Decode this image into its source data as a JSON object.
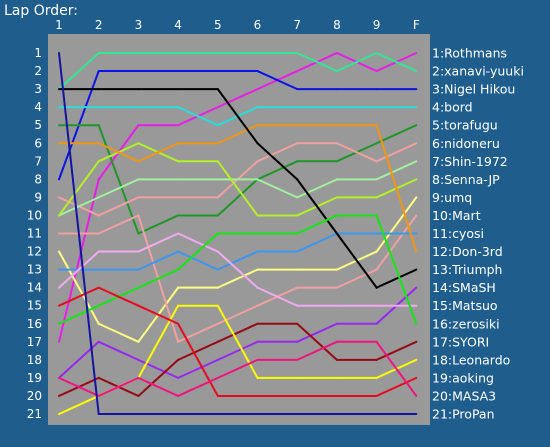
{
  "chart_data": {
    "type": "line",
    "title": "Lap Order:",
    "x": [
      "1",
      "2",
      "3",
      "4",
      "5",
      "6",
      "7",
      "8",
      "9",
      "F"
    ],
    "y_ticks": [
      "1",
      "2",
      "3",
      "4",
      "5",
      "6",
      "7",
      "8",
      "9",
      "10",
      "11",
      "12",
      "13",
      "14",
      "15",
      "16",
      "17",
      "18",
      "19",
      "20",
      "21"
    ],
    "ylim": [
      1,
      21
    ],
    "y_inverted": true,
    "grid": false,
    "legend": "right",
    "plot_bg": "#999999",
    "series": [
      {
        "name": "1:Rothmans",
        "color": "#e61ee6",
        "positions": [
          17,
          8,
          5,
          5,
          4,
          3,
          2,
          1,
          2,
          1
        ]
      },
      {
        "name": "2:xanavi-yuuki",
        "color": "#32e696",
        "positions": [
          3,
          1,
          1,
          1,
          1,
          1,
          1,
          2,
          1,
          2
        ]
      },
      {
        "name": "3:Nigel Hikou",
        "color": "#0a14e6",
        "positions": [
          8,
          2,
          2,
          2,
          2,
          2,
          3,
          3,
          3,
          3
        ]
      },
      {
        "name": "4:bord",
        "color": "#28dcdc",
        "positions": [
          4,
          4,
          4,
          4,
          5,
          4,
          4,
          4,
          4,
          4
        ]
      },
      {
        "name": "5:torafugu",
        "color": "#1e9628",
        "positions": [
          5,
          5,
          11,
          10,
          10,
          8,
          7,
          7,
          6,
          5
        ]
      },
      {
        "name": "6:nidoneru",
        "color": "#f0a0a0",
        "positions": [
          9,
          10,
          9,
          9,
          9,
          7,
          6,
          6,
          7,
          6
        ]
      },
      {
        "name": "7:Shin-1972",
        "color": "#a0f0a0",
        "positions": [
          10,
          9,
          8,
          8,
          8,
          8,
          9,
          8,
          8,
          7
        ]
      },
      {
        "name": "8:Senna-JP",
        "color": "#b4f028",
        "positions": [
          10,
          7,
          6,
          7,
          7,
          10,
          10,
          9,
          9,
          8
        ]
      },
      {
        "name": "9:umq",
        "color": "#ffff82",
        "positions": [
          12,
          16,
          17,
          14,
          14,
          13,
          13,
          13,
          12,
          9
        ]
      },
      {
        "name": "10:Mart",
        "color": "#f0a0a0",
        "positions": [
          11,
          11,
          10,
          17,
          16,
          15,
          14,
          14,
          13,
          10
        ]
      },
      {
        "name": "11:cyosi",
        "color": "#3c96f0",
        "positions": [
          13,
          13,
          13,
          12,
          13,
          12,
          12,
          11,
          11,
          11
        ]
      },
      {
        "name": "12:Don-3rd",
        "color": "#f09614",
        "positions": [
          6,
          6,
          7,
          6,
          6,
          5,
          5,
          5,
          5,
          12
        ]
      },
      {
        "name": "13:Triumph",
        "color": "#000000",
        "positions": [
          3,
          3,
          3,
          3,
          3,
          6,
          8,
          11,
          14,
          13
        ]
      },
      {
        "name": "14:SMaSH",
        "color": "#9628f0",
        "positions": [
          19,
          17,
          18,
          19,
          18,
          17,
          17,
          16,
          16,
          14
        ]
      },
      {
        "name": "15:Matsuo",
        "color": "#f0aaf0",
        "positions": [
          14,
          12,
          12,
          11,
          12,
          14,
          15,
          15,
          15,
          15
        ]
      },
      {
        "name": "16:zerosiki",
        "color": "#14e614",
        "positions": [
          16,
          15,
          14,
          13,
          11,
          11,
          11,
          10,
          10,
          16
        ]
      },
      {
        "name": "17:SYORI",
        "color": "#960a14",
        "positions": [
          20,
          19,
          20,
          18,
          17,
          16,
          16,
          18,
          18,
          17
        ]
      },
      {
        "name": "18:Leonardo",
        "color": "#ffff00",
        "positions": [
          21,
          20,
          19,
          15,
          15,
          19,
          19,
          19,
          19,
          18
        ]
      },
      {
        "name": "19:aoking",
        "color": "#e60a1e",
        "positions": [
          15,
          14,
          15,
          16,
          20,
          20,
          20,
          20,
          20,
          19
        ]
      },
      {
        "name": "20:MASA3",
        "color": "#f0147e",
        "positions": [
          19,
          20,
          19,
          20,
          19,
          18,
          18,
          17,
          17,
          20
        ]
      },
      {
        "name": "21:ProPan",
        "color": "#1414a0",
        "positions": [
          1,
          21,
          21,
          21,
          21,
          21,
          21,
          21,
          21,
          21
        ]
      }
    ]
  }
}
